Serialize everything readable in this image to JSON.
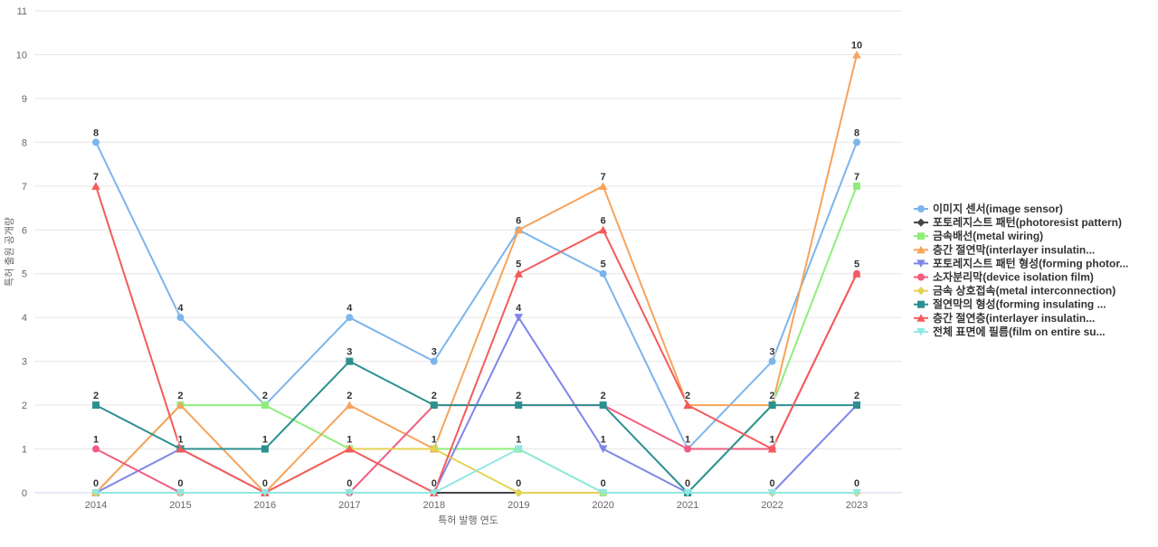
{
  "chart_data": {
    "type": "line",
    "title": "",
    "xlabel": "특허 발행 연도",
    "ylabel": "특허 출원 공개량",
    "categories": [
      "2014",
      "2015",
      "2016",
      "2017",
      "2018",
      "2019",
      "2020",
      "2021",
      "2022",
      "2023"
    ],
    "ylim": [
      0,
      11
    ],
    "yticks": [
      0,
      1,
      2,
      3,
      4,
      5,
      6,
      7,
      8,
      9,
      10,
      11
    ],
    "grid": true,
    "legend_position": "right",
    "grid_color": "#e6e6e6",
    "axis_line_color": "#ccd6eb",
    "series": [
      {
        "name": "이미지 센서(image sensor)",
        "color": "#7cb5ec",
        "marker": "circle",
        "values": [
          8,
          4,
          2,
          4,
          3,
          6,
          5,
          1,
          3,
          8
        ]
      },
      {
        "name": "포토레지스트 패턴(photoresist pattern)",
        "color": "#434348",
        "marker": "diamond",
        "values": [
          0,
          0,
          0,
          0,
          0,
          0,
          0,
          0,
          0,
          0
        ]
      },
      {
        "name": "금속배선(metal wiring)",
        "color": "#90ed7d",
        "marker": "square",
        "values": [
          0,
          2,
          2,
          1,
          1,
          1,
          0,
          0,
          2,
          7
        ]
      },
      {
        "name": "층간 절연막(interlayer insulatin...",
        "color": "#f7a35c",
        "marker": "triangle",
        "values": [
          0,
          2,
          0,
          2,
          1,
          6,
          7,
          2,
          2,
          10
        ]
      },
      {
        "name": "포토레지스트 패턴 형성(forming photor...",
        "color": "#8085e9",
        "marker": "triangle-down",
        "values": [
          0,
          1,
          0,
          0,
          0,
          4,
          1,
          0,
          0,
          2
        ]
      },
      {
        "name": "소자분리막(device isolation film)",
        "color": "#f15c80",
        "marker": "circle",
        "values": [
          1,
          0,
          0,
          0,
          2,
          2,
          2,
          1,
          1,
          5
        ]
      },
      {
        "name": "금속 상호접속(metal interconnection)",
        "color": "#e4d354",
        "marker": "diamond",
        "values": [
          0,
          0,
          0,
          1,
          1,
          0,
          0,
          0,
          0,
          0
        ]
      },
      {
        "name": "절연막의 형성(forming insulating ...",
        "color": "#2b908f",
        "marker": "square",
        "values": [
          2,
          1,
          1,
          3,
          2,
          2,
          2,
          0,
          2,
          2
        ]
      },
      {
        "name": "층간 절연층(interlayer insulatin...",
        "color": "#f45b5b",
        "marker": "triangle",
        "values": [
          7,
          1,
          0,
          1,
          0,
          5,
          6,
          2,
          1,
          5
        ]
      },
      {
        "name": "전체 표면에 필름(film on entire su...",
        "color": "#91e8e1",
        "marker": "triangle-down",
        "values": [
          0,
          0,
          0,
          0,
          0,
          1,
          0,
          0,
          0,
          0
        ]
      }
    ]
  }
}
